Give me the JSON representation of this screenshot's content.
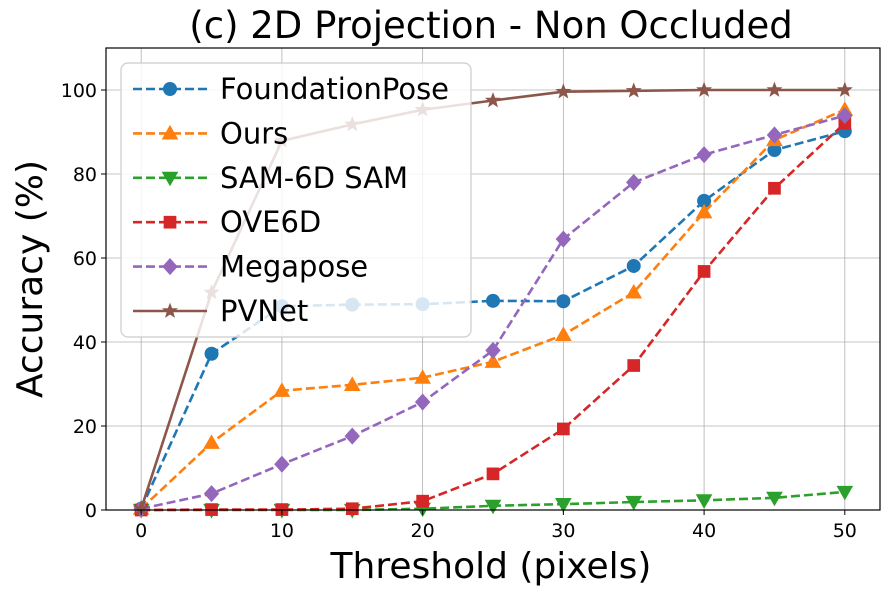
{
  "chart_data": {
    "type": "line",
    "title": "(c) 2D Projection - Non Occluded",
    "xlabel": "Threshold (pixels)",
    "ylabel": "Accuracy (%)",
    "xlim": [
      -2.5,
      52.5
    ],
    "ylim": [
      0,
      110
    ],
    "xticks": [
      0,
      10,
      20,
      30,
      40,
      50
    ],
    "yticks": [
      0,
      20,
      40,
      60,
      80,
      100
    ],
    "grid": true,
    "legend_position": "top-left",
    "x": [
      0,
      5,
      10,
      15,
      20,
      25,
      30,
      35,
      40,
      45,
      50
    ],
    "series": [
      {
        "name": "FoundationPose",
        "color": "#1f77b4",
        "marker": "circle",
        "linestyle": "dashed",
        "values": [
          0.3,
          37.2,
          48.5,
          48.9,
          49.0,
          49.8,
          49.7,
          58.1,
          73.6,
          85.7,
          90.2
        ]
      },
      {
        "name": "Ours",
        "color": "#ff7f0e",
        "marker": "triangle-up",
        "linestyle": "dashed",
        "values": [
          0.3,
          16.0,
          28.4,
          29.8,
          31.5,
          35.3,
          41.7,
          51.8,
          70.9,
          88.1,
          95.3
        ]
      },
      {
        "name": "SAM-6D SAM",
        "color": "#2ca02c",
        "marker": "triangle-down",
        "linestyle": "dashed",
        "values": [
          0.0,
          0.0,
          0.0,
          0.0,
          0.3,
          1.0,
          1.4,
          1.9,
          2.3,
          2.9,
          4.3
        ]
      },
      {
        "name": "OVE6D",
        "color": "#d62728",
        "marker": "square",
        "linestyle": "dashed",
        "values": [
          0.0,
          0.1,
          0.1,
          0.3,
          2.1,
          8.6,
          19.3,
          34.4,
          56.8,
          76.6,
          92.1
        ]
      },
      {
        "name": "Megapose",
        "color": "#9467bd",
        "marker": "diamond",
        "linestyle": "dashed",
        "values": [
          0.3,
          3.9,
          10.9,
          17.6,
          25.7,
          38.0,
          64.5,
          78.0,
          84.6,
          89.3,
          93.9
        ]
      },
      {
        "name": "PVNet",
        "color": "#8c564b",
        "marker": "star",
        "linestyle": "solid",
        "values": [
          0.3,
          51.8,
          87.9,
          91.8,
          95.3,
          97.5,
          99.6,
          99.8,
          100.0,
          100.0,
          100.0
        ]
      }
    ]
  }
}
